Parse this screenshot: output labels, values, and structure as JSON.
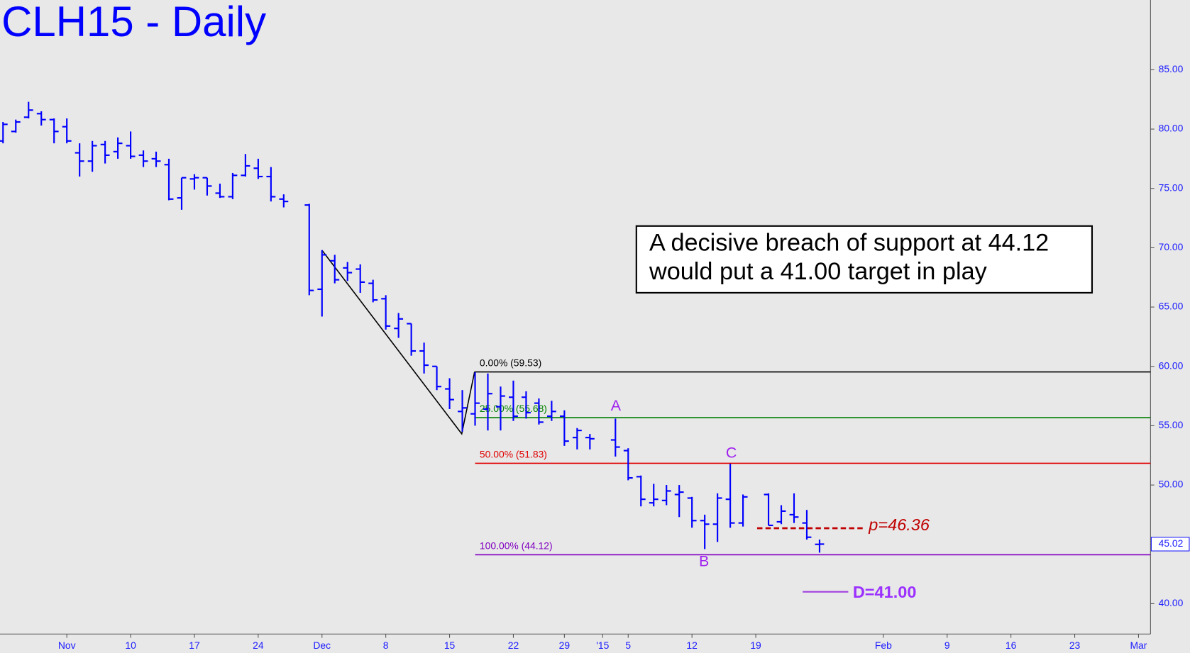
{
  "chart_data": {
    "type": "ohlc",
    "title": "CLH15 - Daily",
    "color": "#0000ff",
    "categories": [
      null,
      null,
      null,
      null,
      null,
      "Nov",
      null,
      null,
      null,
      null,
      "10",
      null,
      null,
      null,
      null,
      "17",
      null,
      null,
      null,
      null,
      "24",
      null,
      null,
      null,
      null,
      "Dec",
      null,
      null,
      null,
      null,
      "8",
      null,
      null,
      null,
      null,
      "15",
      null,
      null,
      null,
      null,
      "22",
      null,
      null,
      null,
      "29",
      null,
      null,
      "'15",
      null,
      "5",
      null,
      null,
      null,
      null,
      "12",
      null,
      null,
      null,
      null,
      "19",
      null,
      null,
      null,
      null,
      null,
      null,
      null,
      null,
      null,
      "Feb",
      null,
      null,
      null,
      null,
      "9",
      null,
      null,
      null,
      null,
      "16",
      null,
      null,
      null,
      null,
      "23",
      null,
      null,
      null,
      null,
      "Mar"
    ],
    "open": [
      79.0,
      79.8,
      81.0,
      81.3,
      80.8,
      80.2,
      78.0,
      77.3,
      78.7,
      78.1,
      78.6,
      77.8,
      77.5,
      77.0,
      74.2,
      75.8,
      75.9,
      74.6,
      74.3,
      76.1,
      76.7,
      76.0,
      74.1,
      null,
      73.6,
      66.5,
      68.9,
      68.3,
      68.2,
      67.0,
      65.7,
      63.2,
      63.6,
      61.3,
      60.0,
      58.1,
      56.2,
      56.0,
      56.4,
      56.6,
      57.4,
      57.4,
      56.9,
      55.8,
      55.8,
      54.0,
      54.0,
      null,
      53.8,
      52.9,
      50.7,
      48.5,
      48.7,
      49.2,
      48.9,
      47.0,
      46.7,
      48.8,
      46.8,
      null,
      49.2,
      46.9,
      47.5,
      46.8,
      45.0,
      null,
      null,
      null,
      null,
      null,
      null,
      null,
      null,
      null,
      null,
      null,
      null,
      null,
      null,
      null,
      null,
      null,
      null,
      null,
      null,
      null,
      null,
      null,
      null,
      null
    ],
    "high": [
      80.6,
      80.8,
      82.3,
      81.5,
      80.9,
      80.9,
      78.8,
      79.0,
      79.0,
      79.3,
      79.8,
      78.2,
      78.1,
      77.5,
      75.9,
      76.2,
      75.9,
      75.4,
      76.3,
      77.9,
      77.5,
      76.8,
      74.5,
      null,
      73.7,
      69.8,
      69.4,
      68.8,
      68.6,
      67.3,
      66.0,
      64.5,
      63.6,
      62.0,
      60.0,
      59.0,
      58.0,
      59.5,
      59.4,
      58.3,
      58.8,
      57.9,
      57.3,
      57.1,
      56.3,
      54.8,
      54.3,
      null,
      55.6,
      53.1,
      50.8,
      50.1,
      50.0,
      50.0,
      49.0,
      47.5,
      49.3,
      51.8,
      49.2,
      null,
      49.3,
      48.3,
      49.3,
      47.9,
      45.4,
      null,
      null,
      null,
      null,
      null,
      null,
      null,
      null,
      null,
      null,
      null,
      null,
      null,
      null,
      null,
      null,
      null,
      null,
      null,
      null,
      null,
      null,
      null,
      null,
      null
    ],
    "low": [
      78.8,
      79.7,
      80.9,
      80.3,
      78.8,
      78.8,
      76.0,
      76.4,
      77.1,
      77.5,
      77.5,
      76.8,
      76.8,
      74.0,
      73.2,
      74.9,
      74.4,
      74.2,
      74.1,
      76.0,
      75.8,
      73.9,
      73.4,
      null,
      66.0,
      64.2,
      67.0,
      67.2,
      66.2,
      65.4,
      63.1,
      62.4,
      60.9,
      59.4,
      58.0,
      56.4,
      54.5,
      55.0,
      54.6,
      54.6,
      55.4,
      55.6,
      55.1,
      55.4,
      53.3,
      53.0,
      53.0,
      null,
      52.4,
      50.4,
      48.2,
      48.2,
      48.3,
      47.3,
      46.4,
      44.6,
      45.2,
      46.4,
      46.5,
      null,
      46.6,
      46.7,
      46.8,
      45.4,
      44.3,
      null,
      null,
      null,
      null,
      null,
      null,
      null,
      null,
      null,
      null,
      null,
      null,
      null,
      null,
      null,
      null,
      null,
      null,
      null,
      null,
      null,
      null,
      null,
      null,
      null
    ],
    "close": [
      80.4,
      80.6,
      81.6,
      80.8,
      79.8,
      79.0,
      77.3,
      78.6,
      77.8,
      78.8,
      77.7,
      77.3,
      77.3,
      74.1,
      75.9,
      75.9,
      75.2,
      74.3,
      76.1,
      76.9,
      76.0,
      74.3,
      73.9,
      null,
      66.4,
      69.4,
      67.3,
      67.9,
      67.1,
      65.6,
      63.4,
      64.0,
      61.3,
      60.1,
      58.3,
      57.2,
      56.5,
      56.9,
      57.7,
      57.5,
      55.8,
      56.1,
      55.3,
      56.2,
      53.7,
      54.6,
      53.9,
      null,
      53.2,
      50.6,
      48.8,
      48.8,
      49.5,
      49.4,
      47.0,
      46.7,
      48.9,
      46.8,
      49.0,
      null,
      46.6,
      47.8,
      47.3,
      45.6,
      45.02,
      null,
      null,
      null,
      null,
      null,
      null,
      null,
      null,
      null,
      null,
      null,
      null,
      null,
      null,
      null,
      null,
      null,
      null,
      null,
      null,
      null,
      null,
      null,
      null,
      null
    ],
    "ylim": [
      37.44,
      90.88
    ],
    "yticks": [
      {
        "value": 40,
        "label": "40.00"
      },
      {
        "value": 45,
        "label": "45.00"
      },
      {
        "value": 50,
        "label": "50.00"
      },
      {
        "value": 55,
        "label": "55.00"
      },
      {
        "value": 60,
        "label": "60.00"
      },
      {
        "value": 65,
        "label": "65.00"
      },
      {
        "value": 70,
        "label": "70.00"
      },
      {
        "value": 75,
        "label": "75.00"
      },
      {
        "value": 80,
        "label": "80.00"
      },
      {
        "value": 85,
        "label": "85.00"
      }
    ],
    "grid": false,
    "fib_levels": [
      {
        "label": "0.00% (59.53)",
        "value": 59.53,
        "color": "#000000"
      },
      {
        "label": "25.00% (55.68)",
        "value": 55.68,
        "color": "#008000"
      },
      {
        "label": "50.00% (51.83)",
        "value": 51.83,
        "color": "#e00000"
      },
      {
        "label": "100.00% (44.12)",
        "value": 44.12,
        "color": "#8000c0"
      }
    ],
    "pivots": [
      "A",
      "B",
      "C"
    ],
    "target_p": {
      "label": "p=46.36",
      "value": 46.36,
      "color": "#c00000"
    },
    "target_d": {
      "label": "D=41.00",
      "value": 41.0,
      "color": "#a040e0"
    },
    "last_price": {
      "label": "45.02",
      "value": 45.02
    },
    "annotation": [
      "A decisive breach of support at 44.12",
      "would put a 41.00 target in play"
    ]
  }
}
